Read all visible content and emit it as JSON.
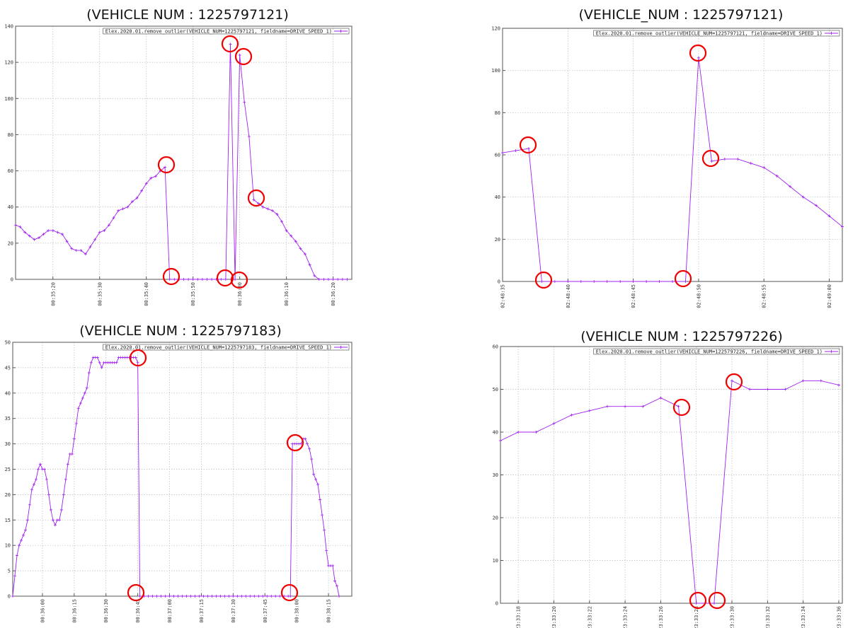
{
  "chart_data": [
    {
      "type": "line",
      "title": "(VEHICLE NUM : 1225797121)",
      "x": [
        "00:35:12",
        "00:35:13",
        "00:35:14",
        "00:35:15",
        "00:35:16",
        "00:35:17",
        "00:35:18",
        "00:35:19",
        "00:35:20",
        "00:35:21",
        "00:35:22",
        "00:35:23",
        "00:35:24",
        "00:35:25",
        "00:35:26",
        "00:35:27",
        "00:35:28",
        "00:35:29",
        "00:35:30",
        "00:35:31",
        "00:35:32",
        "00:35:33",
        "00:35:34",
        "00:35:35",
        "00:35:36",
        "00:35:37",
        "00:35:38",
        "00:35:39",
        "00:35:40",
        "00:35:41",
        "00:35:42",
        "00:35:43",
        "00:35:44",
        "00:35:45",
        "00:35:46",
        "00:35:47",
        "00:35:48",
        "00:35:49",
        "00:35:50",
        "00:35:51",
        "00:35:52",
        "00:35:53",
        "00:35:54",
        "00:35:55",
        "00:35:56",
        "00:35:57",
        "00:35:58",
        "00:35:59",
        "00:36:00",
        "00:36:01",
        "00:36:02",
        "00:36:03",
        "00:36:04",
        "00:36:05",
        "00:36:06",
        "00:36:07",
        "00:36:08",
        "00:36:09",
        "00:36:10",
        "00:36:11",
        "00:36:12",
        "00:36:13",
        "00:36:14",
        "00:36:15",
        "00:36:16",
        "00:36:17",
        "00:36:18",
        "00:36:19",
        "00:36:20",
        "00:36:21",
        "00:36:22",
        "00:36:23"
      ],
      "series": [
        {
          "name": "Elex.2020.01.remove_outlier(VEHICLE_NUM=1225797121, fieldname=DRIVE_SPEED_1)",
          "color": "#a020f0",
          "values": [
            30,
            29,
            26,
            24,
            22,
            23,
            25,
            27,
            27,
            26,
            25,
            21,
            17,
            16,
            16,
            14,
            18,
            22,
            26,
            27,
            30,
            34,
            38,
            39,
            40,
            43,
            45,
            49,
            53,
            56,
            57,
            60,
            62,
            0,
            0,
            0,
            0,
            0,
            0,
            0,
            0,
            0,
            0,
            0,
            0,
            0,
            130,
            0,
            124,
            98,
            79,
            44,
            42,
            40,
            39,
            38,
            36,
            32,
            27,
            24,
            21,
            17,
            14,
            8,
            2,
            0,
            0,
            0,
            0,
            0,
            0,
            0
          ]
        }
      ],
      "xlim": [
        "00:35:12",
        "00:36:24"
      ],
      "xticks": [
        "00:35:20",
        "00:35:30",
        "00:35:40",
        "00:35:50",
        "00:36:00",
        "00:36:10",
        "00:36:20"
      ],
      "ylim": [
        0,
        140
      ],
      "yticks": [
        0,
        20,
        40,
        60,
        80,
        100,
        120,
        140
      ],
      "grid": true,
      "legend": "upper right"
    },
    {
      "type": "line",
      "title": "(VEHICLE_NUM : 1225797121)",
      "x": [
        "02:48:35",
        "02:48:36",
        "02:48:37",
        "02:48:38",
        "02:48:39",
        "02:48:40",
        "02:48:41",
        "02:48:42",
        "02:48:43",
        "02:48:44",
        "02:48:45",
        "02:48:46",
        "02:48:47",
        "02:48:48",
        "02:48:49",
        "02:48:50",
        "02:48:51",
        "02:48:52",
        "02:48:53",
        "02:48:54",
        "02:48:55",
        "02:48:56",
        "02:48:57",
        "02:48:58",
        "02:48:59",
        "02:49:00",
        "02:49:01"
      ],
      "series": [
        {
          "name": "Elex.2020.01.remove_outlier(VEHICLE_NUM=1225797121, fieldname=DRIVE_SPEED_1)",
          "color": "#a020f0",
          "values": [
            61,
            62,
            63,
            0,
            0,
            0,
            0,
            0,
            0,
            0,
            0,
            0,
            0,
            0,
            0,
            106,
            57,
            58,
            58,
            56,
            54,
            50,
            45,
            40,
            36,
            31,
            26
          ]
        }
      ],
      "xlim": [
        "02:48:35",
        "02:49:01"
      ],
      "xticks": [
        "02:48:35",
        "02:48:40",
        "02:48:45",
        "02:48:50",
        "02:48:55",
        "02:49:00"
      ],
      "ylim": [
        0,
        120
      ],
      "yticks": [
        0,
        20,
        40,
        60,
        80,
        100,
        120
      ],
      "grid": true,
      "legend": "upper right"
    },
    {
      "type": "line",
      "title": "(VEHICLE NUM : 1225797183)",
      "x": [
        "00:35:46",
        "00:35:47",
        "00:35:48",
        "00:35:49",
        "00:35:50",
        "00:35:51",
        "00:35:52",
        "00:35:53",
        "00:35:54",
        "00:35:55",
        "00:35:56",
        "00:35:57",
        "00:35:58",
        "00:35:59",
        "00:36:00",
        "00:36:01",
        "00:36:02",
        "00:36:03",
        "00:36:04",
        "00:36:05",
        "00:36:06",
        "00:36:07",
        "00:36:08",
        "00:36:09",
        "00:36:10",
        "00:36:11",
        "00:36:12",
        "00:36:13",
        "00:36:14",
        "00:36:15",
        "00:36:16",
        "00:36:17",
        "00:36:18",
        "00:36:19",
        "00:36:20",
        "00:36:21",
        "00:36:22",
        "00:36:23",
        "00:36:24",
        "00:36:25",
        "00:36:26",
        "00:36:27",
        "00:36:28",
        "00:36:29",
        "00:36:30",
        "00:36:31",
        "00:36:32",
        "00:36:33",
        "00:36:34",
        "00:36:35",
        "00:36:36",
        "00:36:37",
        "00:36:38",
        "00:36:39",
        "00:36:40",
        "00:36:41",
        "00:36:42",
        "00:36:43",
        "00:36:44",
        "00:36:45",
        "00:36:46",
        "00:36:48",
        "00:36:50",
        "00:36:52",
        "00:36:54",
        "00:36:56",
        "00:36:58",
        "00:37:00",
        "00:37:02",
        "00:37:04",
        "00:37:06",
        "00:37:08",
        "00:37:10",
        "00:37:12",
        "00:37:14",
        "00:37:16",
        "00:37:18",
        "00:37:20",
        "00:37:22",
        "00:37:24",
        "00:37:26",
        "00:37:28",
        "00:37:30",
        "00:37:32",
        "00:37:34",
        "00:37:36",
        "00:37:38",
        "00:37:40",
        "00:37:42",
        "00:37:44",
        "00:37:46",
        "00:37:48",
        "00:37:50",
        "00:37:52",
        "00:37:54",
        "00:37:56",
        "00:37:57",
        "00:37:58",
        "00:37:59",
        "00:38:00",
        "00:38:01",
        "00:38:02",
        "00:38:03",
        "00:38:04",
        "00:38:05",
        "00:38:06",
        "00:38:07",
        "00:38:08",
        "00:38:09",
        "00:38:10",
        "00:38:11",
        "00:38:12",
        "00:38:13",
        "00:38:14",
        "00:38:15",
        "00:38:16",
        "00:38:17",
        "00:38:18",
        "00:38:19",
        "00:38:20"
      ],
      "series": [
        {
          "name": "Elex.2020.01.remove_outlier(VEHICLE_NUM=1225797183, fieldname=DRIVE_SPEED_1)",
          "color": "#a020f0",
          "values": [
            0,
            4,
            8,
            10,
            11,
            12,
            13,
            15,
            18,
            21,
            22,
            23,
            25,
            26,
            25,
            25,
            23,
            20,
            17,
            15,
            14,
            15,
            15,
            17,
            20,
            23,
            26,
            28,
            28,
            31,
            34,
            37,
            38,
            39,
            40,
            41,
            44,
            46,
            47,
            47,
            47,
            46,
            45,
            46,
            46,
            46,
            46,
            46,
            46,
            46,
            47,
            47,
            47,
            47,
            47,
            47,
            47,
            47,
            47,
            46,
            0,
            0,
            0,
            0,
            0,
            0,
            0,
            0,
            0,
            0,
            0,
            0,
            0,
            0,
            0,
            0,
            0,
            0,
            0,
            0,
            0,
            0,
            0,
            0,
            0,
            0,
            0,
            0,
            0,
            0,
            0,
            0,
            0,
            0,
            0,
            0,
            0,
            30,
            30,
            30,
            30,
            30,
            31,
            31,
            30,
            29,
            27,
            24,
            23,
            22,
            19,
            16,
            13,
            9,
            6,
            6,
            6,
            3,
            2,
            0
          ]
        }
      ],
      "xlim": [
        "00:35:46",
        "00:38:26"
      ],
      "xticks": [
        "00:36:00",
        "00:36:15",
        "00:36:30",
        "00:36:45",
        "00:37:00",
        "00:37:15",
        "00:37:30",
        "00:37:45",
        "00:38:00",
        "00:38:15"
      ],
      "ylim": [
        0,
        50
      ],
      "yticks": [
        0,
        5,
        10,
        15,
        20,
        25,
        30,
        35,
        40,
        45,
        50
      ],
      "grid": true,
      "legend": "upper right"
    },
    {
      "type": "line",
      "title": "(VEHICLE NUM : 1225797226)",
      "x": [
        "23:33:17",
        "23:33:18",
        "23:33:19",
        "23:33:20",
        "23:33:21",
        "23:33:22",
        "23:33:23",
        "23:33:24",
        "23:33:25",
        "23:33:26",
        "23:33:27",
        "23:33:28",
        "23:33:29",
        "23:33:30",
        "23:33:31",
        "23:33:32",
        "23:33:33",
        "23:33:34",
        "23:33:35",
        "23:33:36"
      ],
      "series": [
        {
          "name": "Elex.2020.01.remove_outlier(VEHICLE_NUM=1225797226, fieldname=DRIVE_SPEED_1)",
          "color": "#a020f0",
          "values": [
            38,
            40,
            40,
            42,
            44,
            45,
            46,
            46,
            46,
            48,
            46,
            0,
            0,
            52,
            50,
            50,
            50,
            52,
            52,
            51
          ]
        }
      ],
      "xlim": [
        "23:33:17",
        "23:33:36.2"
      ],
      "xticks": [
        "23:33:18",
        "23:33:20",
        "23:33:22",
        "23:33:24",
        "23:33:26",
        "23:33:28",
        "23:33:30",
        "23:33:32",
        "23:33:34",
        "23:33:36"
      ],
      "ylim": [
        0,
        60
      ],
      "yticks": [
        0,
        10,
        20,
        30,
        40,
        50,
        60
      ],
      "grid": true,
      "legend": "upper right"
    }
  ]
}
